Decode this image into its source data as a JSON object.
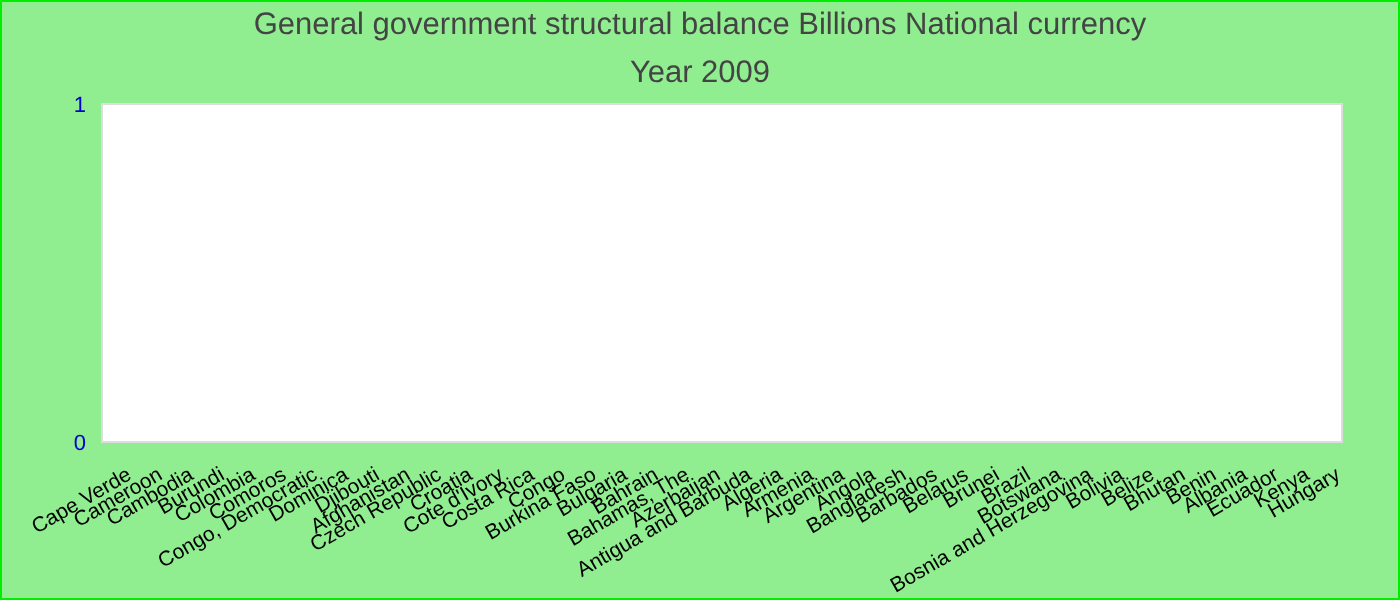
{
  "chart_data": {
    "type": "bar",
    "title": "General government structural balance Billions National currency",
    "subtitle": "Year 2009",
    "categories": [
      "Cape Verde",
      "Cameroon",
      "Cambodia",
      "Burundi",
      "Colombia",
      "Comoros",
      "Congo, Democratic",
      "Dominica",
      "Djibouti",
      "Afghanistan",
      "Czech Republic",
      "Croatia",
      "Cote d'Ivory",
      "Costa Rica",
      "Congo",
      "Burkina Faso",
      "Bulgaria",
      "Bahrain",
      "Bahamas, The",
      "Azerbaijan",
      "Antigua and Barbuda",
      "Algeria",
      "Armenia",
      "Argentina",
      "Angola",
      "Bangladesh",
      "Barbados",
      "Belarus",
      "Brunei",
      "Brazil",
      "Botswana",
      "Bosnia and Herzegovina",
      "Bolivia",
      "Belize",
      "Bhutan",
      "Benin",
      "Albania",
      "Ecuador",
      "Kenya",
      "Hungary"
    ],
    "values": [
      null,
      null,
      null,
      null,
      null,
      null,
      null,
      null,
      null,
      null,
      null,
      null,
      null,
      null,
      null,
      null,
      null,
      null,
      null,
      null,
      null,
      null,
      null,
      null,
      null,
      null,
      null,
      null,
      null,
      null,
      null,
      null,
      null,
      null,
      null,
      null,
      null,
      null,
      null,
      null
    ],
    "ylim": [
      0,
      1
    ],
    "yticks": [
      0,
      1
    ],
    "legend": false
  }
}
